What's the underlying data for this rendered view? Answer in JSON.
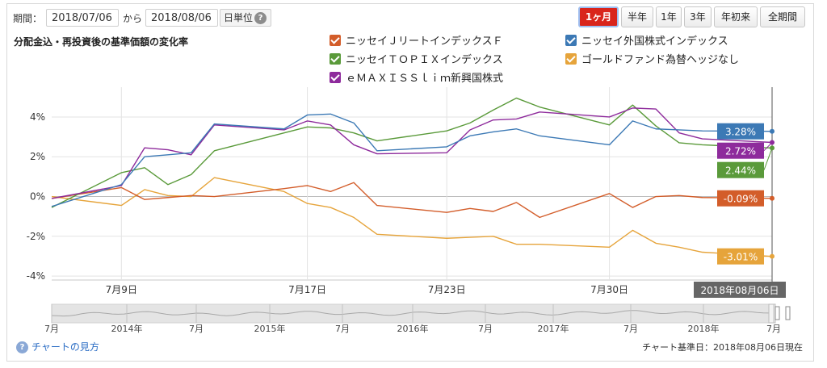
{
  "controls": {
    "period_label": "期間：",
    "from_date": "2018/07/06",
    "separator": "から",
    "to_date": "2018/08/06",
    "unit_button": "日単位",
    "help_glyph": "?",
    "period_buttons": [
      "1ヶ月",
      "半年",
      "1年",
      "3年",
      "年初来",
      "全期間"
    ],
    "active_period": "1ヶ月"
  },
  "chart_data": {
    "type": "line",
    "title": "分配金込・再投資後の基準価額の変化率",
    "ylabel": "%",
    "ylim": [
      -4.2,
      5.5
    ],
    "yticks": [
      "4%",
      "2%",
      "0%",
      "-2%",
      "-4%"
    ],
    "ytick_values": [
      4,
      2,
      0,
      -2,
      -4
    ],
    "x_days": [
      0,
      3,
      4,
      5,
      6,
      7,
      10,
      11,
      12,
      13,
      14,
      17,
      18,
      19,
      20,
      21,
      24,
      25,
      26,
      27,
      28,
      31
    ],
    "x_ticks": [
      {
        "day": 3,
        "label": "7月9日"
      },
      {
        "day": 11,
        "label": "7月17日"
      },
      {
        "day": 17,
        "label": "7月23日"
      },
      {
        "day": 24,
        "label": "7月30日"
      }
    ],
    "current_label": "2018年08月06日",
    "series": [
      {
        "name": "ニッセイＪリートインデックスＦ",
        "color": "#d35d2a",
        "values": [
          -0.1,
          0.45,
          -0.15,
          -0.05,
          0.05,
          0.0,
          0.4,
          0.55,
          0.25,
          0.7,
          -0.45,
          -0.8,
          -0.6,
          -0.75,
          -0.3,
          -1.05,
          0.15,
          -0.55,
          0.0,
          0.05,
          -0.05,
          -0.09
        ],
        "end_label": "-0.09%"
      },
      {
        "name": "ニッセイ外国株式インデックス",
        "color": "#3c79b5",
        "values": [
          -0.5,
          0.6,
          2.0,
          2.1,
          2.2,
          3.65,
          3.4,
          4.1,
          4.15,
          3.7,
          2.3,
          2.5,
          3.05,
          3.25,
          3.4,
          3.05,
          2.6,
          3.8,
          3.4,
          3.35,
          3.3,
          3.28
        ],
        "end_label": "3.28%"
      },
      {
        "name": "ニッセイＴＯＰＩＸインデックス",
        "color": "#5a9a3a",
        "values": [
          -0.55,
          1.2,
          1.45,
          0.6,
          1.1,
          2.3,
          3.2,
          3.5,
          3.45,
          3.2,
          2.8,
          3.3,
          3.7,
          4.35,
          4.95,
          4.5,
          3.6,
          4.6,
          3.55,
          2.7,
          2.6,
          2.44
        ],
        "end_label": "2.44%"
      },
      {
        "name": "ゴールドファンド為替ヘッジなし",
        "color": "#e6a43b",
        "values": [
          0.0,
          -0.45,
          0.35,
          0.05,
          0.0,
          0.95,
          0.25,
          -0.35,
          -0.55,
          -1.05,
          -1.9,
          -2.1,
          -2.05,
          -2.0,
          -2.4,
          -2.4,
          -2.55,
          -1.7,
          -2.35,
          -2.55,
          -2.8,
          -3.01
        ],
        "end_label": "-3.01%"
      },
      {
        "name": "ｅＭＡＸＩＳＳｌｉｍ新興国株式",
        "color": "#8e2b9c",
        "values": [
          -0.1,
          0.55,
          2.45,
          2.35,
          2.1,
          3.6,
          3.35,
          3.8,
          3.6,
          2.6,
          2.15,
          2.2,
          3.35,
          3.85,
          3.9,
          4.25,
          4.0,
          4.45,
          4.4,
          3.2,
          2.9,
          2.72
        ],
        "end_label": "2.72%"
      }
    ],
    "legend_order": [
      0,
      1,
      2,
      3,
      4
    ],
    "navigator": {
      "labels": [
        "7月",
        "2014年",
        "7月",
        "2015年",
        "7月",
        "2016年",
        "7月",
        "2017年",
        "7月",
        "2018年",
        "7月"
      ]
    }
  },
  "footer": {
    "help_link": "チャートの見方",
    "base_date": "チャート基準日：2018年08月06日現在"
  }
}
